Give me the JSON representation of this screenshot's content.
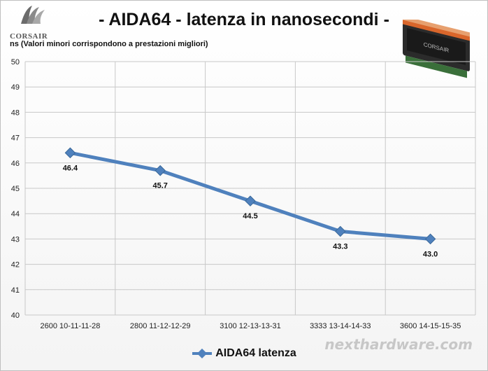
{
  "header": {
    "title": "- AIDA64 - latenza in nanosecondi -",
    "unit_note": "ns  (Valori minori corrispondono a prestazioni  migliori)",
    "brand": "CORSAIR",
    "watermark": "nexthardware.com"
  },
  "chart_data": {
    "type": "line",
    "title": "- AIDA64 - latenza in nanosecondi -",
    "ylabel": "ns",
    "categories": [
      "2600 10-11-11-28",
      "2800 11-12-12-29",
      "3100 12-13-13-31",
      "3333 13-14-14-33",
      "3600 14-15-15-35"
    ],
    "series": [
      {
        "name": "AIDA64 latenza",
        "values": [
          46.4,
          45.7,
          44.5,
          43.3,
          43.0
        ],
        "labels": [
          "46.4",
          "45.7",
          "44.5",
          "43.3",
          "43.0"
        ],
        "color": "#4f81bd"
      }
    ],
    "ylim": [
      40,
      50
    ],
    "yticks": [
      40,
      41,
      42,
      43,
      44,
      45,
      46,
      47,
      48,
      49,
      50
    ],
    "grid": true,
    "legend": "bottom"
  }
}
